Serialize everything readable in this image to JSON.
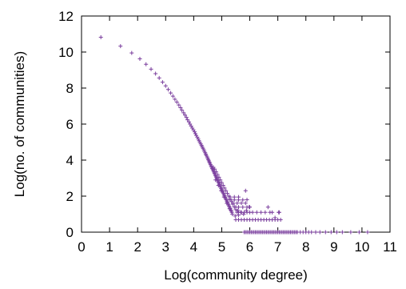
{
  "chart_data": {
    "type": "scatter",
    "title": "",
    "xlabel": "Log(community degree)",
    "ylabel": "Log(no. of communities)",
    "xlim": [
      0,
      11
    ],
    "ylim": [
      0,
      12
    ],
    "x_ticks": [
      "0",
      "1",
      "2",
      "3",
      "4",
      "5",
      "6",
      "7",
      "8",
      "9",
      "10",
      "11"
    ],
    "y_ticks": [
      "0",
      "2",
      "4",
      "6",
      "8",
      "10",
      "12"
    ],
    "grid": false,
    "legend": "none",
    "marker": "plus",
    "colors": {
      "series": "#7b3f9e",
      "axis": "#000000",
      "background": "#ffffff"
    },
    "series": [
      {
        "points": [
          [
            0.69,
            10.82
          ],
          [
            1.39,
            10.33
          ],
          [
            1.79,
            9.95
          ],
          [
            2.08,
            9.62
          ],
          [
            2.3,
            9.32
          ],
          [
            2.48,
            9.05
          ],
          [
            2.64,
            8.8
          ],
          [
            2.77,
            8.56
          ],
          [
            2.89,
            8.33
          ],
          [
            3.0,
            8.12
          ],
          [
            3.09,
            7.92
          ],
          [
            3.18,
            7.73
          ],
          [
            3.26,
            7.55
          ],
          [
            3.33,
            7.38
          ],
          [
            3.4,
            7.22
          ],
          [
            3.47,
            7.06
          ],
          [
            3.53,
            6.91
          ],
          [
            3.58,
            6.77
          ],
          [
            3.64,
            6.63
          ],
          [
            3.69,
            6.5
          ],
          [
            3.74,
            6.37
          ],
          [
            3.78,
            6.24
          ],
          [
            3.83,
            6.12
          ],
          [
            3.87,
            6.0
          ],
          [
            3.91,
            5.89
          ],
          [
            3.95,
            5.78
          ],
          [
            3.99,
            5.68
          ],
          [
            4.03,
            5.57
          ],
          [
            4.06,
            5.47
          ],
          [
            4.09,
            5.37
          ],
          [
            4.13,
            5.27
          ],
          [
            4.16,
            5.17
          ],
          [
            4.19,
            5.08
          ],
          [
            4.22,
            4.99
          ],
          [
            4.25,
            4.9
          ],
          [
            4.28,
            4.82
          ],
          [
            4.3,
            4.74
          ],
          [
            4.33,
            4.66
          ],
          [
            4.36,
            4.58
          ],
          [
            4.38,
            4.49
          ],
          [
            4.41,
            4.41
          ],
          [
            4.43,
            4.33
          ],
          [
            4.45,
            4.26
          ],
          [
            4.48,
            4.18
          ],
          [
            4.5,
            4.1
          ],
          [
            4.52,
            4.03
          ],
          [
            4.54,
            3.96
          ],
          [
            4.56,
            3.89
          ],
          [
            4.58,
            3.82
          ],
          [
            4.6,
            3.75
          ],
          [
            4.62,
            3.68
          ],
          [
            4.64,
            3.61
          ],
          [
            4.66,
            3.54
          ],
          [
            4.68,
            3.48
          ],
          [
            4.7,
            3.41
          ],
          [
            4.72,
            3.34
          ],
          [
            4.74,
            3.27
          ],
          [
            4.76,
            3.2
          ],
          [
            4.78,
            3.13
          ],
          [
            4.8,
            3.06
          ],
          [
            4.82,
            2.99
          ],
          [
            4.84,
            2.92
          ],
          [
            4.86,
            2.85
          ],
          [
            4.88,
            2.78
          ],
          [
            4.9,
            2.71
          ],
          [
            4.92,
            2.64
          ],
          [
            4.94,
            2.57
          ],
          [
            4.96,
            2.5
          ],
          [
            4.98,
            2.43
          ],
          [
            5.0,
            2.36
          ],
          [
            5.02,
            2.29
          ],
          [
            5.04,
            2.22
          ],
          [
            5.06,
            2.15
          ],
          [
            5.08,
            2.08
          ],
          [
            5.1,
            2.01
          ],
          [
            5.12,
            1.94
          ],
          [
            5.14,
            1.87
          ],
          [
            5.16,
            1.8
          ],
          [
            5.18,
            1.73
          ],
          [
            5.2,
            1.66
          ],
          [
            5.22,
            1.59
          ],
          [
            5.24,
            1.52
          ],
          [
            5.26,
            1.45
          ],
          [
            5.28,
            1.38
          ],
          [
            5.3,
            1.31
          ],
          [
            5.32,
            1.24
          ],
          [
            5.34,
            1.17
          ],
          [
            5.36,
            1.1
          ],
          [
            4.7,
            3.6
          ],
          [
            4.75,
            3.5
          ],
          [
            4.8,
            3.35
          ],
          [
            4.85,
            3.2
          ],
          [
            4.9,
            3.05
          ],
          [
            4.95,
            2.9
          ],
          [
            5.0,
            2.75
          ],
          [
            5.05,
            2.6
          ],
          [
            5.1,
            2.45
          ],
          [
            5.15,
            2.3
          ],
          [
            5.2,
            2.15
          ],
          [
            5.25,
            2.0
          ],
          [
            5.3,
            1.85
          ],
          [
            5.35,
            1.7
          ],
          [
            5.4,
            1.55
          ],
          [
            5.45,
            1.4
          ],
          [
            5.5,
            1.25
          ],
          [
            5.55,
            1.1
          ],
          [
            5.6,
            0.95
          ],
          [
            4.78,
            2.9
          ],
          [
            4.88,
            2.6
          ],
          [
            4.98,
            2.3
          ],
          [
            5.08,
            1.95
          ],
          [
            5.18,
            1.6
          ],
          [
            5.28,
            1.3
          ],
          [
            5.38,
            1.0
          ],
          [
            5.48,
            0.9
          ],
          [
            5.58,
            1.2
          ],
          [
            5.68,
            1.1
          ],
          [
            5.78,
            1.0
          ],
          [
            5.88,
            1.2
          ],
          [
            5.98,
            1.4
          ],
          [
            5.9,
            1.8
          ],
          [
            5.5,
            0.69
          ],
          [
            5.6,
            0.69
          ],
          [
            5.7,
            0.69
          ],
          [
            5.8,
            0.69
          ],
          [
            5.9,
            0.69
          ],
          [
            6.0,
            0.69
          ],
          [
            6.1,
            0.69
          ],
          [
            6.2,
            0.69
          ],
          [
            6.3,
            0.69
          ],
          [
            6.4,
            0.69
          ],
          [
            6.5,
            0.69
          ],
          [
            6.6,
            0.69
          ],
          [
            6.7,
            0.69
          ],
          [
            6.8,
            0.69
          ],
          [
            6.9,
            0.69
          ],
          [
            7.0,
            0.69
          ],
          [
            7.1,
            0.69
          ],
          [
            5.6,
            1.1
          ],
          [
            5.7,
            1.1
          ],
          [
            5.8,
            1.1
          ],
          [
            5.9,
            1.1
          ],
          [
            6.0,
            1.1
          ],
          [
            6.1,
            1.1
          ],
          [
            6.25,
            1.1
          ],
          [
            6.4,
            1.1
          ],
          [
            6.55,
            1.1
          ],
          [
            6.8,
            1.1
          ],
          [
            7.05,
            1.1
          ],
          [
            5.5,
            1.39
          ],
          [
            5.6,
            1.39
          ],
          [
            5.75,
            1.39
          ],
          [
            5.9,
            1.39
          ],
          [
            6.0,
            1.39
          ],
          [
            5.4,
            1.61
          ],
          [
            5.55,
            1.61
          ],
          [
            5.7,
            1.61
          ],
          [
            5.85,
            1.61
          ],
          [
            5.3,
            1.79
          ],
          [
            5.45,
            1.79
          ],
          [
            5.6,
            1.79
          ],
          [
            5.75,
            1.79
          ],
          [
            5.3,
            1.95
          ],
          [
            5.45,
            1.95
          ],
          [
            5.6,
            1.95
          ],
          [
            5.85,
            2.3
          ],
          [
            6.65,
            1.39
          ],
          [
            6.72,
            1.1
          ],
          [
            7.03,
            1.1
          ],
          [
            6.9,
            0.8
          ],
          [
            5.8,
            0.0
          ],
          [
            5.85,
            0.0
          ],
          [
            5.9,
            0.0
          ],
          [
            5.95,
            0.0
          ],
          [
            6.0,
            0.0
          ],
          [
            6.05,
            0.0
          ],
          [
            6.1,
            0.0
          ],
          [
            6.15,
            0.0
          ],
          [
            6.2,
            0.0
          ],
          [
            6.25,
            0.0
          ],
          [
            6.3,
            0.0
          ],
          [
            6.35,
            0.0
          ],
          [
            6.4,
            0.0
          ],
          [
            6.45,
            0.0
          ],
          [
            6.5,
            0.0
          ],
          [
            6.55,
            0.0
          ],
          [
            6.6,
            0.0
          ],
          [
            6.65,
            0.0
          ],
          [
            6.7,
            0.0
          ],
          [
            6.75,
            0.0
          ],
          [
            6.8,
            0.0
          ],
          [
            6.85,
            0.0
          ],
          [
            6.9,
            0.0
          ],
          [
            6.95,
            0.0
          ],
          [
            7.0,
            0.0
          ],
          [
            7.05,
            0.0
          ],
          [
            7.1,
            0.0
          ],
          [
            7.15,
            0.0
          ],
          [
            7.2,
            0.0
          ],
          [
            7.25,
            0.0
          ],
          [
            7.3,
            0.0
          ],
          [
            7.35,
            0.0
          ],
          [
            7.4,
            0.0
          ],
          [
            7.45,
            0.0
          ],
          [
            7.5,
            0.0
          ],
          [
            7.55,
            0.0
          ],
          [
            7.6,
            0.0
          ],
          [
            7.65,
            0.0
          ],
          [
            7.7,
            0.0
          ],
          [
            7.8,
            0.0
          ],
          [
            7.9,
            0.0
          ],
          [
            8.0,
            0.0
          ],
          [
            8.1,
            0.0
          ],
          [
            8.2,
            0.0
          ],
          [
            8.35,
            0.0
          ],
          [
            8.5,
            0.0
          ],
          [
            8.7,
            0.0
          ],
          [
            8.9,
            0.0
          ],
          [
            9.1,
            0.0
          ],
          [
            9.3,
            0.0
          ],
          [
            9.6,
            0.0
          ],
          [
            9.9,
            0.0
          ],
          [
            10.2,
            0.0
          ]
        ]
      }
    ]
  }
}
